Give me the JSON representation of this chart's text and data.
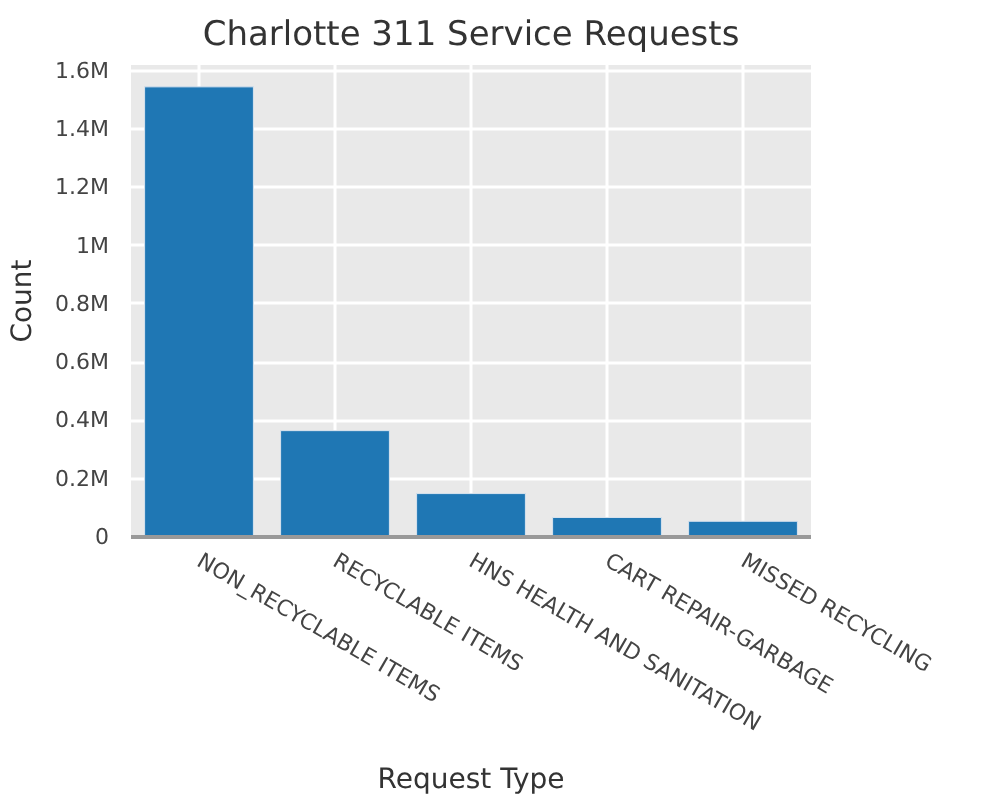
{
  "chart_data": {
    "type": "bar",
    "title": "Charlotte 311 Service Requests",
    "xlabel": "Request Type",
    "ylabel": "Count",
    "categories": [
      "NON_RECYCLABLE ITEMS",
      "RECYCLABLE ITEMS",
      "HNS HEALTH AND SANITATION",
      "CART REPAIR-GARBAGE",
      "MISSED RECYCLING"
    ],
    "values": [
      1545000,
      365000,
      149000,
      67000,
      54000
    ],
    "color": "#1f77b4",
    "ylim": [
      0,
      1620000
    ],
    "yticks": [
      0,
      {
        "value": 200000,
        "label": "0.2M"
      },
      {
        "value": 400000,
        "label": "0.4M"
      },
      {
        "value": 600000,
        "label": "0.6M"
      },
      {
        "value": 800000,
        "label": "0.8M"
      },
      {
        "value": 1000000,
        "label": "1M"
      },
      {
        "value": 1200000,
        "label": "1.2M"
      },
      {
        "value": 1400000,
        "label": "1.4M"
      },
      {
        "value": 1600000,
        "label": "1.6M"
      }
    ],
    "grid": true
  }
}
